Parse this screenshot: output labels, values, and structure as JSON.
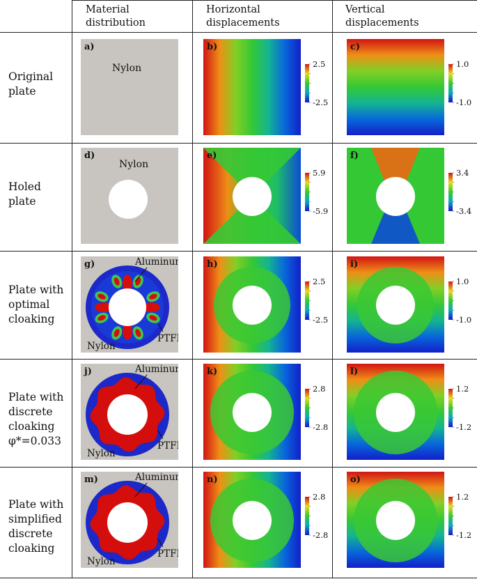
{
  "columns": {
    "material": "Material\ndistribution",
    "horizontal": "Horizontal\ndisplacements",
    "vertical": "Vertical\ndisplacements"
  },
  "rows": [
    {
      "label": "Original\nplate",
      "panels": [
        {
          "tag": "a)",
          "mat": "Nylon"
        },
        {
          "tag": "b)",
          "max": "2.5",
          "min": "-2.5"
        },
        {
          "tag": "c)",
          "max": "1.0",
          "min": "-1.0"
        }
      ]
    },
    {
      "label": "Holed\nplate",
      "panels": [
        {
          "tag": "d)",
          "mat": "Nylon"
        },
        {
          "tag": "e)",
          "max": "5.9",
          "min": "-5.9"
        },
        {
          "tag": "f)",
          "max": "3.4",
          "min": "-3.4"
        }
      ]
    },
    {
      "label": "Plate with\noptimal\ncloaking",
      "panels": [
        {
          "tag": "g)",
          "aluminum": "Aluminum",
          "ptfe": "PTFE",
          "nylon": "Nylon"
        },
        {
          "tag": "h)",
          "max": "2.5",
          "min": "-2.5"
        },
        {
          "tag": "i)",
          "max": "1.0",
          "min": "-1.0"
        }
      ]
    },
    {
      "label": "Plate with\ndiscrete\ncloaking\nφ*=0.033",
      "panels": [
        {
          "tag": "j)",
          "aluminum": "Aluminum",
          "ptfe": "PTFE",
          "nylon": "Nylon"
        },
        {
          "tag": "k)",
          "max": "2.8",
          "min": "-2.8"
        },
        {
          "tag": "l)",
          "max": "1.2",
          "min": "-1.2"
        }
      ]
    },
    {
      "label": "Plate with\nsimplified\ndiscrete\ncloaking",
      "panels": [
        {
          "tag": "m)",
          "aluminum": "Aluminum",
          "ptfe": "PTFE",
          "nylon": "Nylon"
        },
        {
          "tag": "n)",
          "max": "2.8",
          "min": "-2.8"
        },
        {
          "tag": "o)",
          "max": "1.2",
          "min": "-1.2"
        }
      ]
    }
  ],
  "colors": {
    "nylon": "#c8c5c0",
    "aluminum": "#d40d0d",
    "ptfe": "#1c28c8",
    "border": "#222222"
  }
}
